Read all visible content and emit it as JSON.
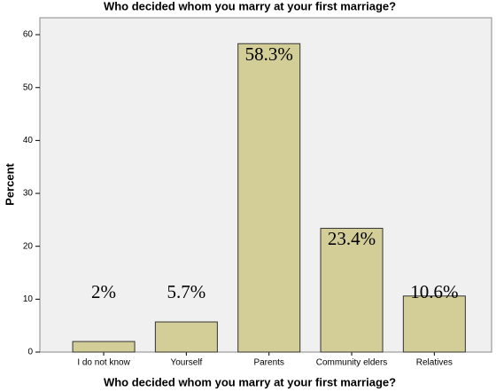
{
  "chart_data": {
    "type": "bar",
    "title": "Who decided whom you marry at your first marriage?",
    "x_label": "Who decided whom you marry at your first marriage?",
    "y_label": "Percent",
    "categories": [
      "I do not know",
      "Yourself",
      "Parents",
      "Community elders",
      "Relatives"
    ],
    "values": [
      2,
      5.7,
      58.3,
      23.4,
      10.6
    ],
    "value_labels": [
      "2%",
      "5.7%",
      "58.3%",
      "23.4%",
      "10.6%"
    ],
    "color": "#d3ce97",
    "ylim": [
      0,
      63.2
    ],
    "yticks": [
      0,
      10,
      20,
      30,
      40,
      50,
      60
    ],
    "grid": false
  }
}
